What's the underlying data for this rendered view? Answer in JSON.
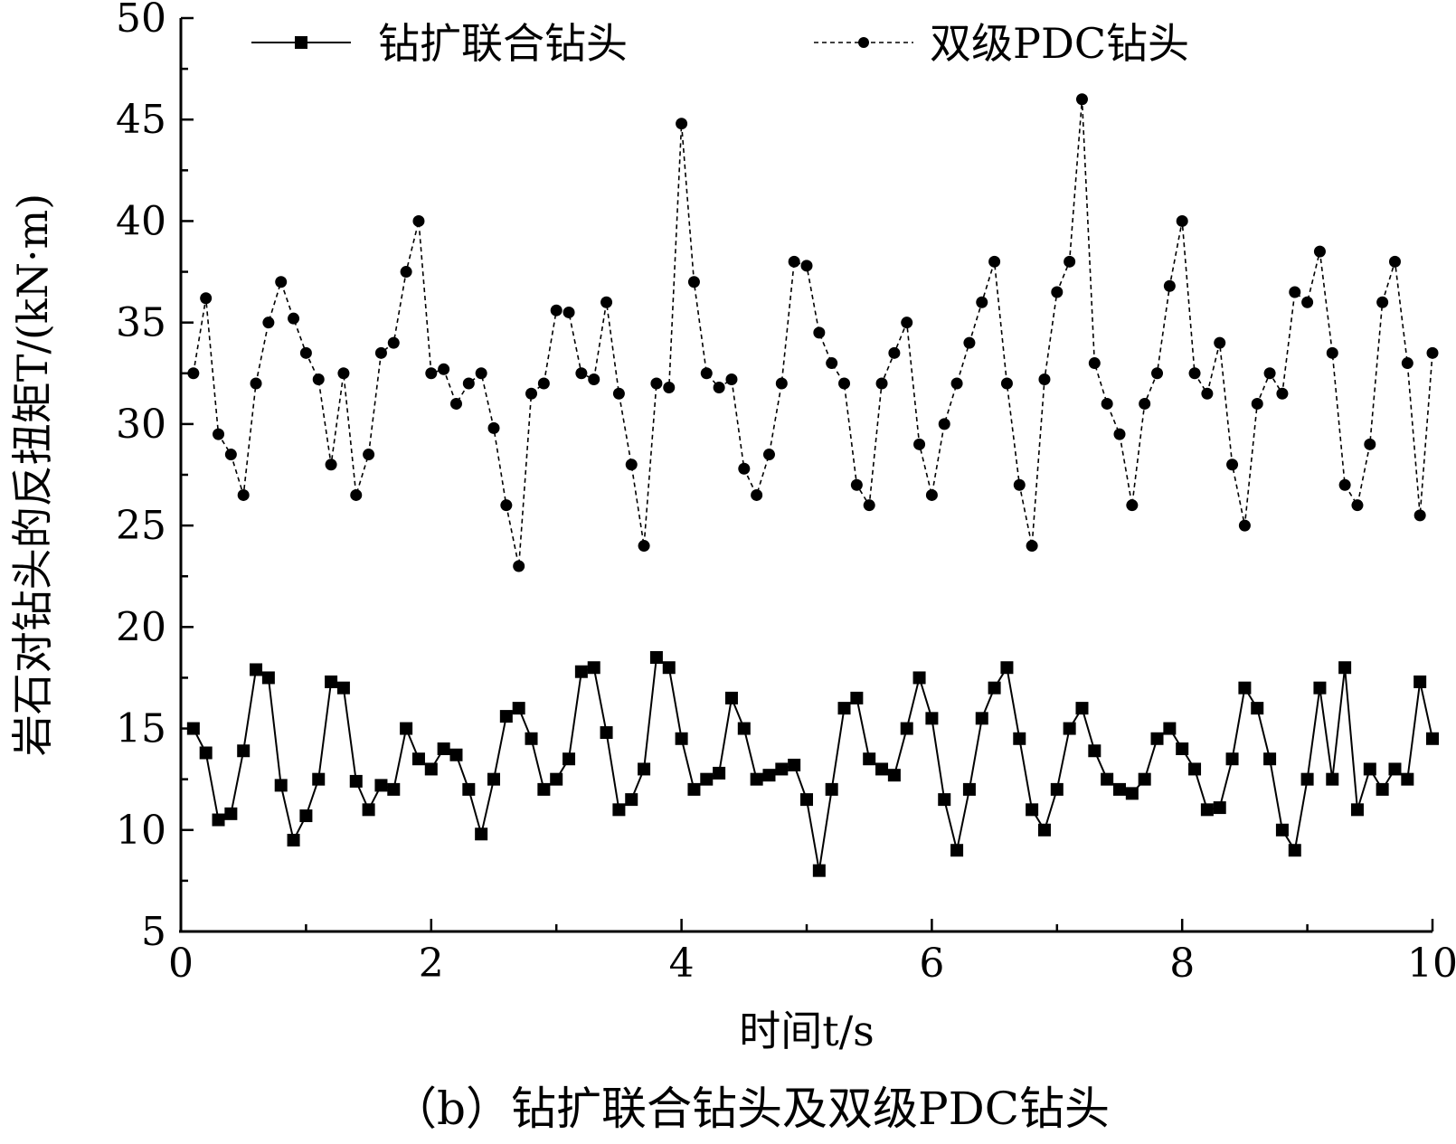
{
  "chart_data": {
    "type": "line",
    "caption": "（b）钻扩联合钻头及双级PDC钻头",
    "xlabel": "时间t/s",
    "ylabel": "岩石对钻头的反扭矩T/(kN·m)",
    "xlim": [
      0,
      10
    ],
    "ylim": [
      5,
      50
    ],
    "x_ticks": [
      "0",
      "2",
      "4",
      "6",
      "8",
      "10"
    ],
    "y_ticks": [
      "5",
      "10",
      "15",
      "20",
      "25",
      "30",
      "35",
      "40",
      "45",
      "50"
    ],
    "grid": false,
    "legend_position": "top",
    "series": [
      {
        "name": "钻扩联合钻头",
        "marker": "square",
        "line_style": "solid",
        "color": "#000000",
        "x": [
          0.1,
          0.2,
          0.3,
          0.4,
          0.5,
          0.6,
          0.7,
          0.8,
          0.9,
          1.0,
          1.1,
          1.2,
          1.3,
          1.4,
          1.5,
          1.6,
          1.7,
          1.8,
          1.9,
          2.0,
          2.1,
          2.2,
          2.3,
          2.4,
          2.5,
          2.6,
          2.7,
          2.8,
          2.9,
          3.0,
          3.1,
          3.2,
          3.3,
          3.4,
          3.5,
          3.6,
          3.7,
          3.8,
          3.9,
          4.0,
          4.1,
          4.2,
          4.3,
          4.4,
          4.5,
          4.6,
          4.7,
          4.8,
          4.9,
          5.0,
          5.1,
          5.2,
          5.3,
          5.4,
          5.5,
          5.6,
          5.7,
          5.8,
          5.9,
          6.0,
          6.1,
          6.2,
          6.3,
          6.4,
          6.5,
          6.6,
          6.7,
          6.8,
          6.9,
          7.0,
          7.1,
          7.2,
          7.3,
          7.4,
          7.5,
          7.6,
          7.7,
          7.8,
          7.9,
          8.0,
          8.1,
          8.2,
          8.3,
          8.4,
          8.5,
          8.6,
          8.7,
          8.8,
          8.9,
          9.0,
          9.1,
          9.2,
          9.3,
          9.4,
          9.5,
          9.6,
          9.7,
          9.8,
          9.9,
          10.0
        ],
        "y": [
          15.0,
          13.8,
          10.5,
          10.8,
          13.9,
          17.9,
          17.5,
          12.2,
          9.5,
          10.7,
          12.5,
          17.3,
          17.0,
          12.4,
          11.0,
          12.2,
          12.0,
          15.0,
          13.5,
          13.0,
          14.0,
          13.7,
          12.0,
          9.8,
          12.5,
          15.6,
          16.0,
          14.5,
          12.0,
          12.5,
          13.5,
          17.8,
          18.0,
          14.8,
          11.0,
          11.5,
          13.0,
          18.5,
          18.0,
          14.5,
          12.0,
          12.5,
          12.8,
          16.5,
          15.0,
          12.5,
          12.7,
          13.0,
          13.2,
          11.5,
          8.0,
          12.0,
          16.0,
          16.5,
          13.5,
          13.0,
          12.7,
          15.0,
          17.5,
          15.5,
          11.5,
          9.0,
          12.0,
          15.5,
          17.0,
          18.0,
          14.5,
          11.0,
          10.0,
          12.0,
          15.0,
          16.0,
          13.9,
          12.5,
          12.0,
          11.8,
          12.5,
          14.5,
          15.0,
          14.0,
          13.0,
          11.0,
          11.1,
          13.5,
          17.0,
          16.0,
          13.5,
          10.0,
          9.0,
          12.5,
          17.0,
          12.5,
          18.0,
          11.0,
          13.0,
          12.0,
          13.0,
          12.5,
          17.3,
          14.5
        ]
      },
      {
        "name": "双级PDC钻头",
        "marker": "circle",
        "line_style": "dashed",
        "color": "#000000",
        "x": [
          0.1,
          0.2,
          0.3,
          0.4,
          0.5,
          0.6,
          0.7,
          0.8,
          0.9,
          1.0,
          1.1,
          1.2,
          1.3,
          1.4,
          1.5,
          1.6,
          1.7,
          1.8,
          1.9,
          2.0,
          2.1,
          2.2,
          2.3,
          2.4,
          2.5,
          2.6,
          2.7,
          2.8,
          2.9,
          3.0,
          3.1,
          3.2,
          3.3,
          3.4,
          3.5,
          3.6,
          3.7,
          3.8,
          3.9,
          4.0,
          4.1,
          4.2,
          4.3,
          4.4,
          4.5,
          4.6,
          4.7,
          4.8,
          4.9,
          5.0,
          5.1,
          5.2,
          5.3,
          5.4,
          5.5,
          5.6,
          5.7,
          5.8,
          5.9,
          6.0,
          6.1,
          6.2,
          6.3,
          6.4,
          6.5,
          6.6,
          6.7,
          6.8,
          6.9,
          7.0,
          7.1,
          7.2,
          7.3,
          7.4,
          7.5,
          7.6,
          7.7,
          7.8,
          7.9,
          8.0,
          8.1,
          8.2,
          8.3,
          8.4,
          8.5,
          8.6,
          8.7,
          8.8,
          8.9,
          9.0,
          9.1,
          9.2,
          9.3,
          9.4,
          9.5,
          9.6,
          9.7,
          9.8,
          9.9,
          10.0
        ],
        "y": [
          32.5,
          36.2,
          29.5,
          28.5,
          26.5,
          32.0,
          35.0,
          37.0,
          35.2,
          33.5,
          32.2,
          28.0,
          32.5,
          26.5,
          28.5,
          33.5,
          34.0,
          37.5,
          40.0,
          32.5,
          32.7,
          31.0,
          32.0,
          32.5,
          29.8,
          26.0,
          23.0,
          31.5,
          32.0,
          35.6,
          35.5,
          32.5,
          32.2,
          36.0,
          31.5,
          28.0,
          24.0,
          32.0,
          31.8,
          44.8,
          37.0,
          32.5,
          31.8,
          32.2,
          27.8,
          26.5,
          28.5,
          32.0,
          38.0,
          37.8,
          34.5,
          33.0,
          32.0,
          27.0,
          26.0,
          32.0,
          33.5,
          35.0,
          29.0,
          26.5,
          30.0,
          32.0,
          34.0,
          36.0,
          38.0,
          32.0,
          27.0,
          24.0,
          32.2,
          36.5,
          38.0,
          46.0,
          33.0,
          31.0,
          29.5,
          26.0,
          31.0,
          32.5,
          36.8,
          40.0,
          32.5,
          31.5,
          34.0,
          28.0,
          25.0,
          31.0,
          32.5,
          31.5,
          36.5,
          36.0,
          38.5,
          33.5,
          27.0,
          26.0,
          29.0,
          36.0,
          38.0,
          33.0,
          25.5,
          33.5
        ]
      }
    ]
  }
}
